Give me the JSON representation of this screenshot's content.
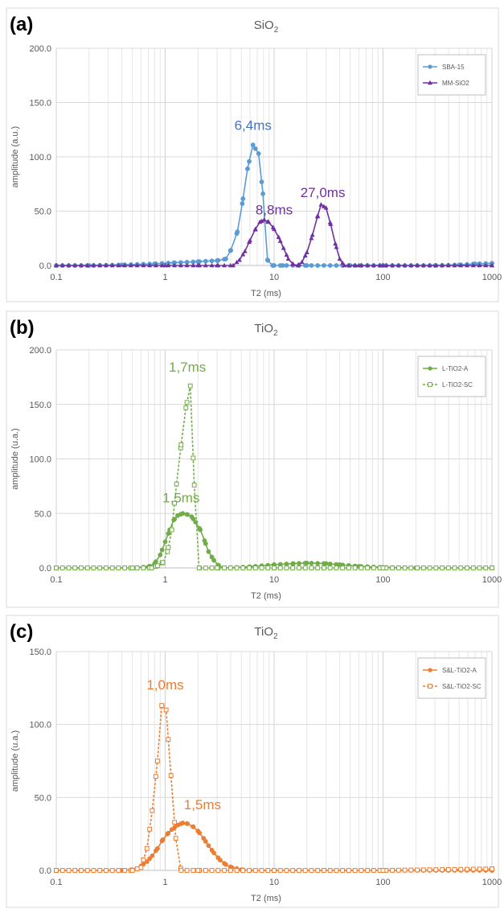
{
  "chart_data": [
    {
      "type": "line",
      "panel_label": "(a)",
      "title": "SiO",
      "title_sub": "2",
      "xlabel": "T2 (ms)",
      "ylabel": "amplitude (a.u.)",
      "xscale": "log",
      "xlim": [
        0.1,
        1000
      ],
      "xticks": [
        "0.1",
        "1",
        "10",
        "100",
        "1000"
      ],
      "ylim": [
        0,
        200
      ],
      "yticks": [
        "0.0",
        "50.0",
        "100.0",
        "150.0",
        "200.0"
      ],
      "grid": true,
      "legend_position": "top-right",
      "series": [
        {
          "name": "SBA-15",
          "color": "#5B9BD5",
          "marker": "circle",
          "dashed": false,
          "filled": true,
          "points": [
            [
              0.1,
              0
            ],
            [
              0.2,
              0
            ],
            [
              0.4,
              0.5
            ],
            [
              0.8,
              1.5
            ],
            [
              1.2,
              2.5
            ],
            [
              2,
              3.5
            ],
            [
              3,
              4.5
            ],
            [
              3.6,
              6
            ],
            [
              4,
              14
            ],
            [
              4.6,
              31
            ],
            [
              5.1,
              57
            ],
            [
              5.7,
              89
            ],
            [
              6.4,
              111
            ],
            [
              7.2,
              103
            ],
            [
              7.9,
              66
            ],
            [
              8.7,
              5
            ],
            [
              9.7,
              0
            ],
            [
              12,
              0
            ],
            [
              20,
              0
            ],
            [
              50,
              0
            ],
            [
              100,
              0
            ],
            [
              300,
              0
            ],
            [
              500,
              0.5
            ],
            [
              700,
              1.5
            ],
            [
              1000,
              2
            ]
          ]
        },
        {
          "name": "MM-SiO2",
          "color": "#7030A0",
          "marker": "triangle",
          "dashed": false,
          "filled": true,
          "points": [
            [
              0.1,
              0
            ],
            [
              1,
              0
            ],
            [
              2,
              0
            ],
            [
              3,
              0
            ],
            [
              4.2,
              0
            ],
            [
              4.8,
              5
            ],
            [
              5.4,
              13
            ],
            [
              6,
              23
            ],
            [
              6.7,
              33
            ],
            [
              7.4,
              40
            ],
            [
              8.1,
              42
            ],
            [
              8.9,
              40
            ],
            [
              9.8,
              35
            ],
            [
              11,
              26
            ],
            [
              12.2,
              16
            ],
            [
              13.5,
              6
            ],
            [
              15,
              1
            ],
            [
              16.5,
              0
            ],
            [
              18,
              3
            ],
            [
              20,
              12
            ],
            [
              22.5,
              28
            ],
            [
              25,
              45
            ],
            [
              27,
              56
            ],
            [
              30,
              53
            ],
            [
              33,
              38
            ],
            [
              36.5,
              20
            ],
            [
              40,
              6
            ],
            [
              44,
              0
            ],
            [
              60,
              0
            ],
            [
              100,
              0
            ],
            [
              1000,
              0
            ]
          ]
        }
      ],
      "annotations": [
        {
          "text": "6,4ms",
          "x": 6.4,
          "y": 125,
          "color": "#4472C4"
        },
        {
          "text": "8,8ms",
          "x": 10,
          "y": 47,
          "color": "#7030A0"
        },
        {
          "text": "27,0ms",
          "x": 28,
          "y": 63,
          "color": "#7030A0"
        }
      ]
    },
    {
      "type": "line",
      "panel_label": "(b)",
      "title": "TiO",
      "title_sub": "2",
      "xlabel": "T2 (ms)",
      "ylabel": "amplitude (u.a.)",
      "xscale": "log",
      "xlim": [
        0.1,
        1000
      ],
      "xticks": [
        "0.1",
        "1",
        "10",
        "100",
        "1000"
      ],
      "ylim": [
        0,
        200
      ],
      "yticks": [
        "0.0",
        "50.0",
        "100.0",
        "150.0",
        "200.0"
      ],
      "grid": true,
      "legend_position": "top-right",
      "series": [
        {
          "name": "L-TiO2-A",
          "color": "#70AD47",
          "marker": "circle",
          "dashed": false,
          "filled": true,
          "points": [
            [
              0.1,
              0
            ],
            [
              0.5,
              0
            ],
            [
              0.7,
              1
            ],
            [
              0.8,
              4
            ],
            [
              0.9,
              12
            ],
            [
              1.0,
              24
            ],
            [
              1.1,
              35
            ],
            [
              1.2,
              44
            ],
            [
              1.3,
              48
            ],
            [
              1.45,
              50
            ],
            [
              1.6,
              49
            ],
            [
              1.75,
              47
            ],
            [
              1.9,
              42
            ],
            [
              2.1,
              35
            ],
            [
              2.3,
              25
            ],
            [
              2.5,
              15
            ],
            [
              2.8,
              7
            ],
            [
              3.1,
              2
            ],
            [
              3.5,
              0
            ],
            [
              6,
              1
            ],
            [
              10,
              3
            ],
            [
              15,
              4
            ],
            [
              20,
              4.5
            ],
            [
              30,
              4
            ],
            [
              40,
              3
            ],
            [
              60,
              1.5
            ],
            [
              100,
              0.5
            ],
            [
              200,
              0
            ],
            [
              1000,
              0
            ]
          ]
        },
        {
          "name": "L-TiO2-SC",
          "color": "#70AD47",
          "marker": "square",
          "dashed": true,
          "filled": false,
          "points": [
            [
              0.1,
              0
            ],
            [
              0.5,
              0
            ],
            [
              0.75,
              0
            ],
            [
              0.85,
              2
            ],
            [
              0.95,
              5
            ],
            [
              1.05,
              15
            ],
            [
              1.15,
              35
            ],
            [
              1.27,
              77
            ],
            [
              1.4,
              113
            ],
            [
              1.55,
              147
            ],
            [
              1.7,
              167
            ],
            [
              1.85,
              76
            ],
            [
              2.05,
              0
            ],
            [
              3,
              0
            ],
            [
              10,
              0
            ],
            [
              100,
              0
            ],
            [
              1000,
              0
            ]
          ]
        }
      ],
      "annotations": [
        {
          "text": "1,7ms",
          "x": 1.6,
          "y": 180,
          "color": "#70AD47"
        },
        {
          "text": "1,5ms",
          "x": 1.4,
          "y": 60,
          "color": "#70AD47"
        }
      ]
    },
    {
      "type": "line",
      "panel_label": "(c)",
      "title": "TiO",
      "title_sub": "2",
      "xlabel": "T2 (ms)",
      "ylabel": "amplitude (u.a.)",
      "xscale": "log",
      "xlim": [
        0.1,
        1000
      ],
      "xticks": [
        "0.1",
        "1",
        "10",
        "100",
        "1000"
      ],
      "ylim": [
        0,
        150
      ],
      "yticks": [
        "0.0",
        "50.0",
        "100.0",
        "150.0"
      ],
      "grid": true,
      "legend_position": "top-right",
      "series": [
        {
          "name": "S&L-TiO2-A",
          "color": "#ED7D31",
          "marker": "circle",
          "dashed": false,
          "filled": true,
          "points": [
            [
              0.1,
              0
            ],
            [
              0.4,
              0
            ],
            [
              0.5,
              0.5
            ],
            [
              0.55,
              1
            ],
            [
              0.6,
              3
            ],
            [
              0.68,
              6
            ],
            [
              0.76,
              10
            ],
            [
              0.85,
              15
            ],
            [
              0.95,
              21
            ],
            [
              1.05,
              25
            ],
            [
              1.15,
              28
            ],
            [
              1.3,
              31
            ],
            [
              1.45,
              32.5
            ],
            [
              1.6,
              32
            ],
            [
              1.8,
              30
            ],
            [
              2,
              27
            ],
            [
              2.25,
              22
            ],
            [
              2.5,
              17
            ],
            [
              2.8,
              12
            ],
            [
              3.2,
              7
            ],
            [
              3.6,
              4
            ],
            [
              4.1,
              2
            ],
            [
              5,
              0.5
            ],
            [
              6,
              0
            ],
            [
              10,
              0
            ],
            [
              100,
              0
            ],
            [
              1000,
              0
            ]
          ]
        },
        {
          "name": "S&L-TiO2-SC",
          "color": "#ED7D31",
          "marker": "square",
          "dashed": true,
          "filled": false,
          "points": [
            [
              0.1,
              0
            ],
            [
              0.5,
              0
            ],
            [
              0.6,
              2
            ],
            [
              0.68,
              15
            ],
            [
              0.76,
              41
            ],
            [
              0.85,
              75
            ],
            [
              0.93,
              113
            ],
            [
              1.02,
              110
            ],
            [
              1.13,
              65
            ],
            [
              1.25,
              22
            ],
            [
              1.4,
              0
            ],
            [
              2,
              0
            ],
            [
              10,
              0
            ],
            [
              100,
              0
            ],
            [
              1000,
              1
            ]
          ]
        }
      ],
      "annotations": [
        {
          "text": "1,0ms",
          "x": 1.0,
          "y": 124,
          "color": "#ED7D31"
        },
        {
          "text": "1,5ms",
          "x": 2.2,
          "y": 42,
          "color": "#ED7D31"
        }
      ]
    }
  ]
}
